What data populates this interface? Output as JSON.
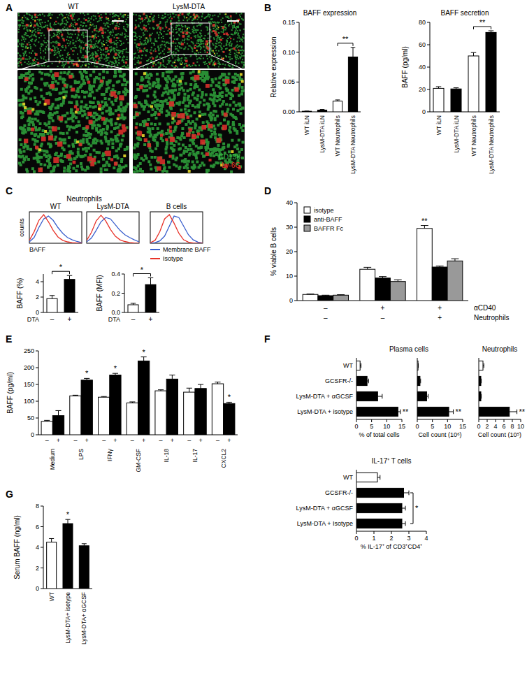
{
  "image_panel": {
    "panel": "A",
    "labels": [
      "WT",
      "LysM-DTA"
    ],
    "legend": [
      {
        "text": "CD138",
        "color": "#3cc84b"
      },
      {
        "text": "Ly-6G",
        "color": "#e8332a"
      }
    ]
  },
  "chart_data": [
    {
      "type": "bar",
      "panel": "B",
      "title": "BAFF expression",
      "ylabel": "Relative expression",
      "categories": [
        "WT iLN",
        "LysM-DTA iLN",
        "WT Neutrophils",
        "LysM-DTA Neutrophils"
      ],
      "series": [
        {
          "values": [
            0.001,
            0.003,
            0.018,
            0.092
          ],
          "errors": [
            0.0003,
            0.001,
            0.002,
            0.016
          ],
          "colors": [
            "#ffffff",
            "#000000",
            "#ffffff",
            "#000000"
          ]
        }
      ],
      "ylim": [
        0,
        0.15
      ],
      "yticks": [
        {
          "value": 0,
          "label": "0.00"
        },
        0.05,
        {
          "value": 0.1,
          "label": "0.10"
        },
        0.15
      ],
      "annotations": [
        {
          "text": "**",
          "bracket": [
            2,
            3
          ]
        }
      ]
    },
    {
      "type": "bar",
      "title": "BAFF secretion",
      "ylabel": "BAFF (pg/ml)",
      "categories": [
        "WT iLN",
        "LysM-DTA iLN",
        "WT Neutrophils",
        "LysM-DTA Neutrophils"
      ],
      "series": [
        {
          "values": [
            21,
            20.5,
            50,
            71
          ],
          "errors": [
            1.5,
            1,
            3,
            1.5
          ],
          "colors": [
            "#ffffff",
            "#000000",
            "#ffffff",
            "#000000"
          ]
        }
      ],
      "ylim": [
        0,
        80
      ],
      "yticks": [
        0,
        20,
        40,
        60,
        80
      ],
      "annotations": [
        {
          "text": "**",
          "bracket": [
            2,
            3
          ]
        }
      ]
    },
    {
      "type": "line",
      "panel": "C",
      "group_title": "Neutrophils",
      "title": "WT",
      "ylabel": "counts",
      "xlabel": "BAFF",
      "tick_labels": false,
      "x": [
        0,
        1,
        2,
        3,
        4,
        5,
        6,
        7,
        8,
        9,
        10,
        11
      ],
      "xlim": [
        0,
        11
      ],
      "ylim": [
        0,
        110
      ],
      "series": [
        {
          "color": "#3a5fcd",
          "values": [
            5,
            20,
            55,
            85,
            95,
            80,
            55,
            35,
            20,
            12,
            6,
            2
          ]
        },
        {
          "color": "#e8332a",
          "values": [
            10,
            40,
            80,
            100,
            75,
            45,
            22,
            10,
            5,
            2,
            1,
            0
          ]
        }
      ]
    },
    {
      "type": "line",
      "title": "LysM-DTA",
      "tick_labels": false,
      "x": [
        0,
        1,
        2,
        3,
        4,
        5,
        6,
        7,
        8,
        9,
        10,
        11
      ],
      "xlim": [
        0,
        11
      ],
      "ylim": [
        0,
        110
      ],
      "series": [
        {
          "color": "#3a5fcd",
          "values": [
            5,
            18,
            45,
            75,
            90,
            85,
            65,
            45,
            30,
            20,
            12,
            5
          ]
        },
        {
          "color": "#e8332a",
          "values": [
            10,
            38,
            78,
            98,
            78,
            48,
            25,
            12,
            6,
            3,
            1,
            0
          ]
        }
      ]
    },
    {
      "type": "line",
      "group_title": "B cells",
      "tick_labels": false,
      "legend": "bottom",
      "x": [
        0,
        1,
        2,
        3,
        4,
        5,
        6,
        7,
        8,
        9,
        10,
        11
      ],
      "xlim": [
        0,
        11
      ],
      "ylim": [
        0,
        110
      ],
      "series": [
        {
          "name": "Membrane BAFF",
          "color": "#3a5fcd",
          "values": [
            0,
            2,
            8,
            25,
            60,
            95,
            90,
            60,
            30,
            12,
            4,
            1
          ]
        },
        {
          "name": "Isotype",
          "color": "#e8332a",
          "values": [
            2,
            10,
            40,
            85,
            100,
            70,
            35,
            12,
            4,
            1,
            0,
            0
          ]
        }
      ]
    },
    {
      "type": "bar",
      "ylabel": "BAFF (%)",
      "category_title": "DTA",
      "categories": [
        "–",
        "+"
      ],
      "series": [
        {
          "values": [
            1.8,
            4.3
          ],
          "errors": [
            0.4,
            0.5
          ],
          "colors": [
            "#ffffff",
            "#000000"
          ]
        }
      ],
      "ylim": [
        0,
        5
      ],
      "yticks": [
        0,
        2,
        4
      ],
      "annotations": [
        {
          "text": "*",
          "bracket": [
            0,
            1
          ]
        }
      ]
    },
    {
      "type": "bar",
      "ylabel": "BAFF (MFI)",
      "category_title": "DTA",
      "categories": [
        "–",
        "+"
      ],
      "series": [
        {
          "values": [
            0.08,
            0.29
          ],
          "errors": [
            0.015,
            0.07
          ],
          "colors": [
            "#ffffff",
            "#000000"
          ]
        }
      ],
      "ylim": [
        0,
        0.4
      ],
      "yticks": [
        {
          "value": 0,
          "label": "0.0"
        },
        0.2,
        0.4
      ],
      "annotations": [
        {
          "text": "*",
          "bracket": [
            0,
            1
          ]
        }
      ]
    },
    {
      "type": "bar",
      "panel": "D",
      "ylabel": "% viable B cells",
      "categories": [
        null,
        null,
        null
      ],
      "condition_rows": [
        {
          "label": "αCD40",
          "cells": [
            "–",
            "+",
            "+"
          ]
        },
        {
          "label": "Neutrophils",
          "cells": [
            "–",
            "–",
            "+"
          ]
        }
      ],
      "legend": "top-left",
      "series": [
        {
          "name": "isotype",
          "color": "#ffffff",
          "values": [
            2.5,
            12.8,
            29.5
          ],
          "errors": [
            0.2,
            0.8,
            1.2
          ]
        },
        {
          "name": "anti-BAFF",
          "color": "#000000",
          "values": [
            2,
            9.2,
            13.7
          ],
          "errors": [
            0.2,
            0.6,
            0.4
          ]
        },
        {
          "name": "BAFFR Fc",
          "color": "#999999",
          "values": [
            2.2,
            7.8,
            16.2
          ],
          "errors": [
            0.2,
            0.7,
            0.9
          ]
        }
      ],
      "ylim": [
        0,
        40
      ],
      "yticks": [
        0,
        10,
        20,
        30,
        40
      ],
      "annotations": [
        {
          "text": "**",
          "at": [
            0,
            2
          ]
        }
      ]
    },
    {
      "type": "bar",
      "panel": "E",
      "ylabel": "BAFF (pg/ml)",
      "categories": [
        "Medium",
        "LPS",
        "IFNγ",
        "GM-CSF",
        "IL-18",
        "IL-17",
        "CXCL2"
      ],
      "series": [
        {
          "sublabel": "–",
          "color": "#ffffff",
          "values": [
            40,
            116,
            112,
            95,
            131,
            127,
            152
          ],
          "errors": [
            3,
            2,
            2,
            3,
            3,
            12,
            5
          ]
        },
        {
          "sublabel": "+",
          "color": "#000000",
          "values": [
            57,
            163,
            178,
            220,
            166,
            138,
            93
          ],
          "errors": [
            15,
            5,
            5,
            12,
            12,
            12,
            4
          ]
        }
      ],
      "ylim": [
        0,
        250
      ],
      "yticks": [
        0,
        50,
        100,
        150,
        200,
        250
      ],
      "annotations": [
        {
          "text": "*",
          "at": [
            1,
            1
          ]
        },
        {
          "text": "*",
          "at": [
            1,
            2
          ]
        },
        {
          "text": "*",
          "at": [
            1,
            3
          ]
        },
        {
          "text": "*",
          "at": [
            1,
            6
          ]
        }
      ]
    },
    {
      "type": "bar",
      "orientation": "horizontal",
      "panel": "F",
      "group_title": "Plasma cells",
      "xlabel": "% of total cells",
      "categories": [
        "WT",
        "GCSFR-/-",
        "LysM-DTA + αGCSF",
        "LysM-DTA + isotype"
      ],
      "series": [
        {
          "values": [
            1.2,
            3.5,
            7,
            13.7
          ],
          "errors": [
            0.3,
            0.5,
            1.5,
            0.8
          ],
          "colors": [
            "#ffffff",
            "#000000",
            "#000000",
            "#000000"
          ]
        }
      ],
      "xlim": [
        0,
        15
      ],
      "xticks": [
        0,
        5,
        10,
        15
      ],
      "annotations": [
        {
          "text": "**",
          "at": [
            0,
            3
          ]
        }
      ]
    },
    {
      "type": "bar",
      "orientation": "horizontal",
      "xlabel": "Cell count (10⁶)",
      "categories": [
        null,
        null,
        null,
        null
      ],
      "series": [
        {
          "values": [
            0.25,
            0.9,
            3.1,
            10.4
          ],
          "errors": [
            0.1,
            0.2,
            0.5,
            1.5
          ],
          "colors": [
            "#ffffff",
            "#000000",
            "#000000",
            "#000000"
          ]
        }
      ],
      "xlim": [
        0,
        15
      ],
      "xticks": [
        0,
        5,
        10,
        15
      ],
      "annotations": [
        {
          "text": "**",
          "at": [
            0,
            3
          ]
        }
      ]
    },
    {
      "type": "bar",
      "orientation": "horizontal",
      "group_title": "Neutrophils",
      "xlabel": "Cell count (10⁵)",
      "categories": [
        null,
        null,
        null,
        null
      ],
      "series": [
        {
          "values": [
            1,
            0.5,
            0.5,
            7.3
          ],
          "errors": [
            0.2,
            0.1,
            0.1,
            1.8
          ],
          "colors": [
            "#ffffff",
            "#000000",
            "#000000",
            "#000000"
          ]
        }
      ],
      "xlim": [
        0,
        10
      ],
      "xticks": [
        0,
        2,
        4,
        6,
        8,
        10
      ],
      "annotations": [
        {
          "text": "**",
          "at": [
            0,
            3
          ]
        }
      ]
    },
    {
      "type": "bar",
      "orientation": "horizontal",
      "group_title": "IL-17⁺ T cells",
      "xlabel": "% IL-17⁺ of CD3⁺CD4⁺",
      "categories": [
        "WT",
        "GCSFR-/-",
        "LysM-DTA + αGCSF",
        "LysM-DTA + Isotype"
      ],
      "series": [
        {
          "values": [
            1.2,
            2.7,
            2.6,
            2.6
          ],
          "errors": [
            0.15,
            0.3,
            0.2,
            0.2
          ],
          "colors": [
            "#ffffff",
            "#000000",
            "#000000",
            "#000000"
          ]
        }
      ],
      "xlim": [
        0,
        4
      ],
      "xticks": [
        0,
        1,
        2,
        3,
        4
      ],
      "annotations": [
        {
          "text": "*",
          "bracket": [
            1,
            3
          ]
        }
      ]
    },
    {
      "type": "bar",
      "panel": "G",
      "ylabel": "Serum BAFF (ng/ml)",
      "categories": [
        "WT",
        "LysM-DTA+ isotype",
        "LysM-DTA+ αGCSF"
      ],
      "series": [
        {
          "values": [
            4.5,
            6.3,
            4.15
          ],
          "errors": [
            0.35,
            0.4,
            0.2
          ],
          "colors": [
            "#ffffff",
            "#000000",
            "#000000"
          ]
        }
      ],
      "ylim": [
        0,
        8
      ],
      "yticks": [
        0,
        2,
        4,
        6,
        8
      ],
      "annotations": [
        {
          "text": "*",
          "at": [
            0,
            1
          ]
        }
      ]
    }
  ]
}
